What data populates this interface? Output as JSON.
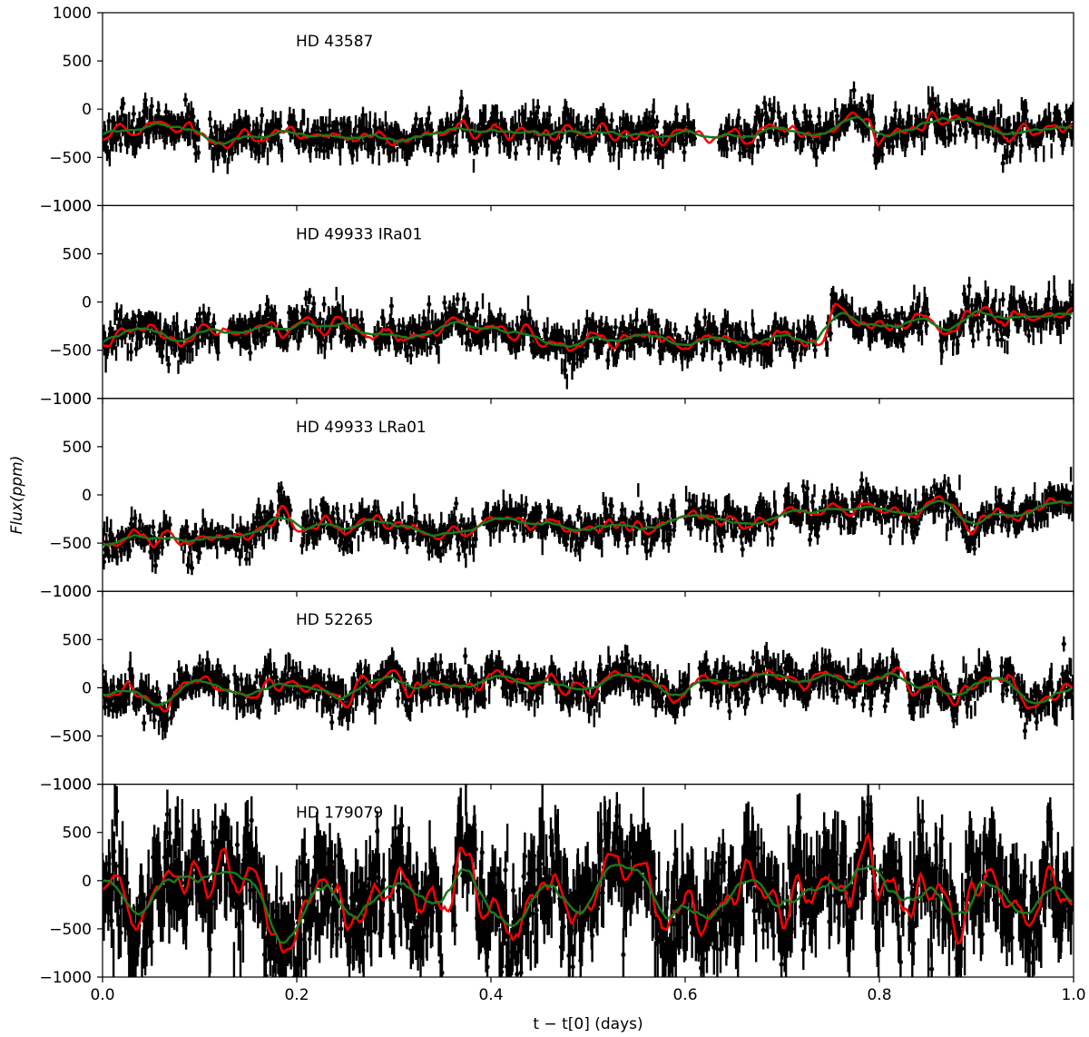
{
  "chart_data": {
    "type": "scatter",
    "ylabel": "Flux(ppm)",
    "xlabel": "t − t[0] (days)",
    "xlim": [
      0.0,
      1.0
    ],
    "x_ticks": [
      "0.0",
      "0.2",
      "0.4",
      "0.6",
      "0.8",
      "1.0"
    ],
    "ylim": [
      -1000,
      1000
    ],
    "y_ticks": [
      "1000",
      "500",
      "0",
      "−500",
      "−1000"
    ],
    "y_tick_values": [
      1000,
      500,
      0,
      -500,
      -1000
    ],
    "x_tick_values": [
      0.0,
      0.2,
      0.4,
      0.6,
      0.8,
      1.0
    ],
    "series_styles": {
      "observations": {
        "color": "#000000",
        "marker": "point with error bar"
      },
      "model_a": {
        "color": "#ff0000",
        "style": "line"
      },
      "model_b": {
        "color": "#1a7a1a",
        "style": "line"
      }
    },
    "panels": [
      {
        "label": "HD 43587",
        "trend": {
          "x": [
            0.0,
            0.2,
            0.4,
            0.6,
            0.8,
            1.0
          ],
          "y": [
            -290,
            -280,
            -230,
            -220,
            -190,
            -170
          ]
        },
        "scatter_sigma": 90,
        "gaps": [
          [
            0.1,
            0.11
          ],
          [
            0.185,
            0.192
          ],
          [
            0.34,
            0.345
          ],
          [
            0.61,
            0.635
          ],
          [
            0.705,
            0.712
          ]
        ]
      },
      {
        "label": "HD 49933 IRa01",
        "trend": {
          "x": [
            0.0,
            0.1,
            0.2,
            0.3,
            0.4,
            0.5,
            0.6,
            0.7,
            0.8,
            0.9,
            1.0
          ],
          "y": [
            -380,
            -350,
            -250,
            -270,
            -310,
            -400,
            -370,
            -300,
            -210,
            -190,
            -80
          ]
        },
        "scatter_sigma": 90,
        "gaps": [
          [
            0.12,
            0.13
          ],
          [
            0.27,
            0.28
          ],
          [
            0.735,
            0.745
          ],
          [
            0.85,
            0.862
          ]
        ]
      },
      {
        "label": "HD 49933 LRa01",
        "trend": {
          "x": [
            0.0,
            0.1,
            0.2,
            0.3,
            0.4,
            0.5,
            0.6,
            0.7,
            0.8,
            0.9,
            1.0
          ],
          "y": [
            -430,
            -360,
            -350,
            -320,
            -340,
            -340,
            -290,
            -230,
            -150,
            -150,
            -80
          ]
        },
        "scatter_sigma": 85,
        "gaps": [
          [
            0.07,
            0.08
          ],
          [
            0.195,
            0.205
          ],
          [
            0.385,
            0.392
          ],
          [
            0.59,
            0.6
          ],
          [
            0.695,
            0.702
          ]
        ]
      },
      {
        "label": "HD 52265",
        "trend": {
          "x": [
            0.0,
            0.2,
            0.4,
            0.6,
            0.8,
            1.0
          ],
          "y": [
            0,
            20,
            60,
            20,
            60,
            70
          ]
        },
        "scatter_sigma": 95,
        "gaps": [
          [
            0.13,
            0.135
          ],
          [
            0.455,
            0.46
          ],
          [
            0.605,
            0.615
          ],
          [
            0.82,
            0.828
          ],
          [
            0.915,
            0.925
          ]
        ]
      },
      {
        "label": "HD 179079",
        "trend": {
          "x": [
            0.0,
            0.2,
            0.4,
            0.6,
            0.8,
            1.0
          ],
          "y": [
            -100,
            -90,
            -110,
            -100,
            -150,
            -160
          ]
        },
        "scatter_sigma": 260,
        "gaps": [
          [
            0.29,
            0.295
          ],
          [
            0.35,
            0.36
          ],
          [
            0.825,
            0.83
          ]
        ]
      }
    ]
  }
}
